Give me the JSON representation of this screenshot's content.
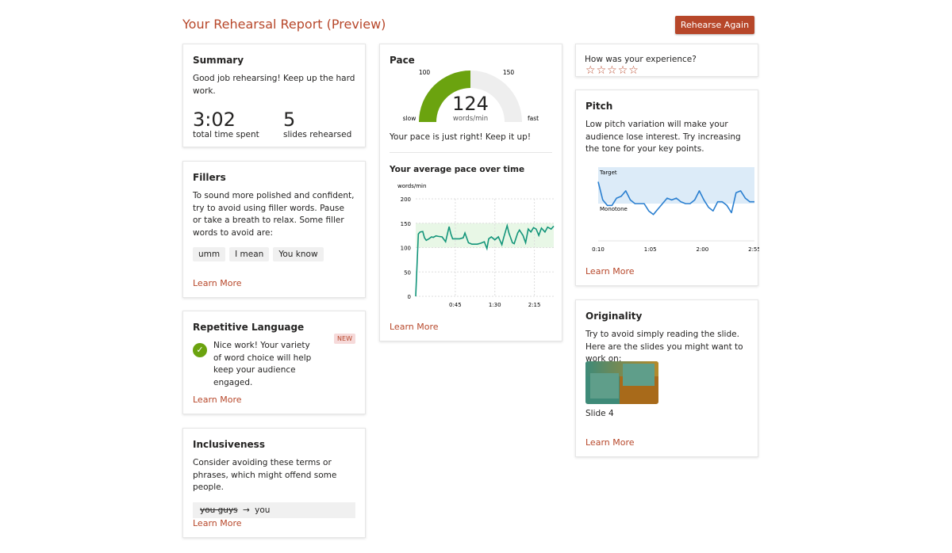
{
  "header": {
    "title": "Your Rehearsal Report (Preview)",
    "rehearse_label": "Rehearse Again"
  },
  "summary": {
    "title": "Summary",
    "text": "Good job rehearsing! Keep up the hard work.",
    "time": "3:02",
    "time_label": "total time spent",
    "slides": "5",
    "slides_label": "slides rehearsed"
  },
  "fillers": {
    "title": "Fillers",
    "text": "To sound more polished and confident, try to avoid using filler words. Pause or take a breath to relax. Some filler words to avoid are:",
    "words": [
      "umm",
      "I mean",
      "You know"
    ],
    "learn": "Learn More"
  },
  "repetitive": {
    "title": "Repetitive Language",
    "badge": "NEW",
    "text": "Nice work! Your variety of word choice will help keep your audience engaged.",
    "learn": "Learn More"
  },
  "inclusiveness": {
    "title": "Inclusiveness",
    "text": "Consider avoiding these terms or phrases, which might offend some people.",
    "from": "you guys",
    "arrow": "→",
    "to": "you",
    "learn": "Learn More"
  },
  "pace": {
    "title": "Pace",
    "value": "124",
    "unit": "words/min",
    "label_100": "100",
    "label_150": "150",
    "slow": "slow",
    "fast": "fast",
    "message": "Your pace is just right! Keep it up!",
    "chart_title": "Your average pace over time",
    "learn": "Learn More"
  },
  "experience": {
    "question": "How was your experience?",
    "rating": 0,
    "max": 5
  },
  "pitch": {
    "title": "Pitch",
    "text": "Low pitch variation will make your audience lose interest. Try increasing the tone for your key points.",
    "target": "Target",
    "monotone": "Monotone",
    "learn": "Learn More"
  },
  "originality": {
    "title": "Originality",
    "text": "Try to avoid simply reading the slide. Here are the slides you might want to work on:",
    "slide_label": "Slide 4",
    "learn": "Learn More"
  },
  "colors": {
    "accent": "#b7472a",
    "green": "#6ba30f",
    "pace_line": "#13957a",
    "pitch_line": "#2a7fd0"
  },
  "chart_data": [
    {
      "type": "line",
      "title": "Your average pace over time",
      "ylabel": "words/min",
      "ylim": [
        0,
        200
      ],
      "yticks": [
        "0",
        "50",
        "100",
        "150",
        "200"
      ],
      "xticks": [
        {
          "t": 45,
          "label": "0:45"
        },
        {
          "t": 90,
          "label": "1:30"
        },
        {
          "t": 135,
          "label": "2:15"
        }
      ],
      "xlim": [
        0,
        157
      ],
      "target_band": [
        100,
        150
      ],
      "x": [
        0,
        3,
        5,
        8,
        10,
        12,
        15,
        18,
        20,
        23,
        26,
        30,
        34,
        38,
        40,
        42,
        45,
        50,
        54,
        56,
        60,
        64,
        67,
        70,
        74,
        78,
        81,
        83,
        86,
        90,
        94,
        98,
        100,
        104,
        106,
        110,
        112,
        116,
        118,
        122,
        125,
        128,
        131,
        134,
        137,
        140,
        143,
        147,
        150,
        154,
        157
      ],
      "y": [
        0,
        128,
        132,
        133,
        120,
        115,
        118,
        122,
        121,
        124,
        123,
        122,
        112,
        143,
        128,
        118,
        118,
        118,
        120,
        130,
        110,
        107,
        107,
        107,
        109,
        112,
        98,
        118,
        122,
        116,
        122,
        106,
        120,
        145,
        130,
        110,
        108,
        130,
        136,
        125,
        110,
        138,
        132,
        141,
        138,
        125,
        140,
        132,
        142,
        138,
        144
      ]
    },
    {
      "type": "line",
      "title": "Pitch",
      "xticks": [
        "0:10",
        "1:05",
        "2:00",
        "2:55"
      ],
      "ylim": [
        -0.6,
        1
      ],
      "band_label_top": "Target",
      "band_label_bottom": "Monotone",
      "y": [
        0.6,
        0.1,
        -0.05,
        -0.05,
        0.15,
        0.2,
        0.35,
        0.1,
        0,
        0,
        0,
        -0.2,
        -0.3,
        -0.15,
        0,
        0.15,
        0.1,
        0.15,
        0.05,
        0,
        0,
        0.1,
        0.35,
        0.1,
        -0.1,
        -0.2,
        0.05,
        0.05,
        -0.05,
        -0.25,
        0.3,
        0.35,
        0.15,
        0.05,
        0.05
      ]
    }
  ]
}
